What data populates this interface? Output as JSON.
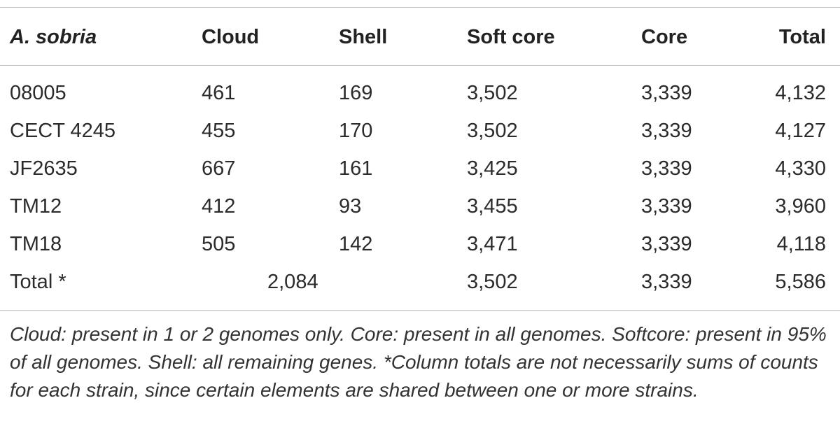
{
  "table": {
    "headers": [
      "A. sobria",
      "Cloud",
      "Shell",
      "Soft core",
      "Core",
      "Total"
    ],
    "rows": [
      [
        "08005",
        "461",
        "169",
        "3,502",
        "3,339",
        "4,132"
      ],
      [
        "CECT 4245",
        "455",
        "170",
        "3,502",
        "3,339",
        "4,127"
      ],
      [
        "JF2635",
        "667",
        "161",
        "3,425",
        "3,339",
        "4,330"
      ],
      [
        "TM12",
        "412",
        "93",
        "3,455",
        "3,339",
        "3,960"
      ],
      [
        "TM18",
        "505",
        "142",
        "3,471",
        "3,339",
        "4,118"
      ]
    ],
    "total_row": {
      "label": "Total *",
      "cloud_shell": "2,084",
      "soft_core": "3,502",
      "core": "3,339",
      "total": "5,586"
    }
  },
  "footnote": "Cloud: present in 1 or 2 genomes only. Core: present in all genomes. Softcore: present in 95% of all genomes. Shell: all remaining genes. *Column totals are not necessarily sums of counts for each strain, since certain elements are shared between one or more strains."
}
